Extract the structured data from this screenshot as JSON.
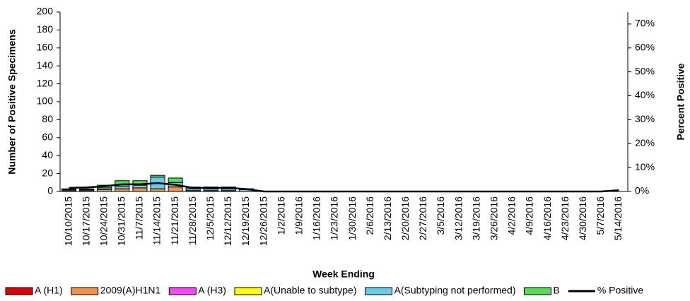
{
  "chart_data": {
    "type": "bar",
    "stacked": true,
    "categories": [
      "10/10/2015",
      "10/17/2015",
      "10/24/2015",
      "10/31/2015",
      "11/7/2015",
      "11/14/2015",
      "11/21/2015",
      "11/28/2015",
      "12/5/2015",
      "12/12/2015",
      "12/19/2015",
      "12/26/2015",
      "1/2/2016",
      "1/9/2016",
      "1/16/2016",
      "1/23/2016",
      "1/30/2016",
      "2/6/2016",
      "2/13/2016",
      "2/20/2016",
      "2/27/2016",
      "3/5/2016",
      "3/12/2016",
      "3/19/2016",
      "3/26/2016",
      "4/2/2016",
      "4/9/2016",
      "4/16/2016",
      "4/23/2016",
      "4/30/2016",
      "5/7/2016",
      "5/14/2016"
    ],
    "series": [
      {
        "name": "A (H1)",
        "color": "#e00000",
        "values": [
          0,
          0,
          0,
          0,
          0,
          0,
          0,
          0,
          0,
          0,
          0,
          0,
          0,
          0,
          0,
          0,
          0,
          0,
          0,
          0,
          0,
          0,
          0,
          0,
          0,
          0,
          0,
          0,
          0,
          0,
          0,
          0
        ]
      },
      {
        "name": "2009(A)H1N1",
        "color": "#f4924a",
        "values": [
          1,
          1,
          2,
          3,
          4,
          3,
          5,
          1,
          1,
          1,
          0,
          0,
          0,
          0,
          0,
          0,
          0,
          0,
          0,
          0,
          0,
          0,
          0,
          0,
          0,
          0,
          0,
          0,
          0,
          0,
          0,
          0
        ]
      },
      {
        "name": "A (H3)",
        "color": "#ff44ff",
        "values": [
          0,
          0,
          0,
          0,
          0,
          0,
          0,
          0,
          0,
          0,
          0,
          0,
          0,
          0,
          0,
          0,
          0,
          0,
          0,
          0,
          0,
          0,
          0,
          0,
          0,
          0,
          0,
          0,
          0,
          0,
          0,
          0
        ]
      },
      {
        "name": "A(Unable to subtype)",
        "color": "#ffff00",
        "values": [
          0,
          0,
          0,
          0,
          0,
          0,
          0,
          0,
          0,
          0,
          0,
          0,
          0,
          0,
          0,
          0,
          0,
          0,
          0,
          0,
          0,
          0,
          0,
          0,
          0,
          0,
          0,
          0,
          0,
          0,
          0,
          0
        ]
      },
      {
        "name": "A(Subtyping not performed)",
        "color": "#66ccee",
        "values": [
          1,
          1,
          2,
          3,
          3,
          13,
          5,
          2,
          2,
          2,
          2,
          0,
          0,
          0,
          0,
          0,
          0,
          0,
          0,
          0,
          0,
          0,
          0,
          0,
          0,
          0,
          0,
          0,
          0,
          0,
          0,
          0
        ]
      },
      {
        "name": "B",
        "color": "#55dd55",
        "values": [
          1,
          1,
          3,
          6,
          5,
          2,
          5,
          2,
          2,
          2,
          1,
          0,
          0,
          0,
          0,
          0,
          0,
          0,
          0,
          0,
          0,
          0,
          0,
          0,
          0,
          0,
          0,
          0,
          0,
          0,
          0,
          0
        ]
      },
      {
        "name": "% Positive",
        "type": "line",
        "axis": "y2",
        "color": "#000000",
        "values": [
          1.5,
          1.7,
          2.2,
          3,
          3,
          3.5,
          2.8,
          1.5,
          1.5,
          1.5,
          1,
          0,
          0,
          0,
          0,
          0,
          0,
          0,
          0,
          0,
          0,
          0,
          0,
          0,
          0,
          0,
          0,
          0,
          0,
          0,
          0,
          0.5
        ]
      }
    ],
    "y_label": "Number of  Positive Specimens",
    "y2_label": "Percent Positive",
    "x_label": "Week Ending",
    "ylim": [
      0,
      200
    ],
    "yticks": [
      0,
      20,
      40,
      60,
      80,
      100,
      120,
      140,
      160,
      180,
      200
    ],
    "y2lim": [
      0,
      75
    ],
    "y2ticks": [
      {
        "value": 0,
        "label": "0%"
      },
      {
        "value": 10,
        "label": "10%"
      },
      {
        "value": 20,
        "label": "20%"
      },
      {
        "value": 30,
        "label": "30%"
      },
      {
        "value": 40,
        "label": "40%"
      },
      {
        "value": 50,
        "label": "50%"
      },
      {
        "value": 60,
        "label": "60%"
      },
      {
        "value": 70,
        "label": "70%"
      }
    ],
    "legend": "bottom"
  }
}
